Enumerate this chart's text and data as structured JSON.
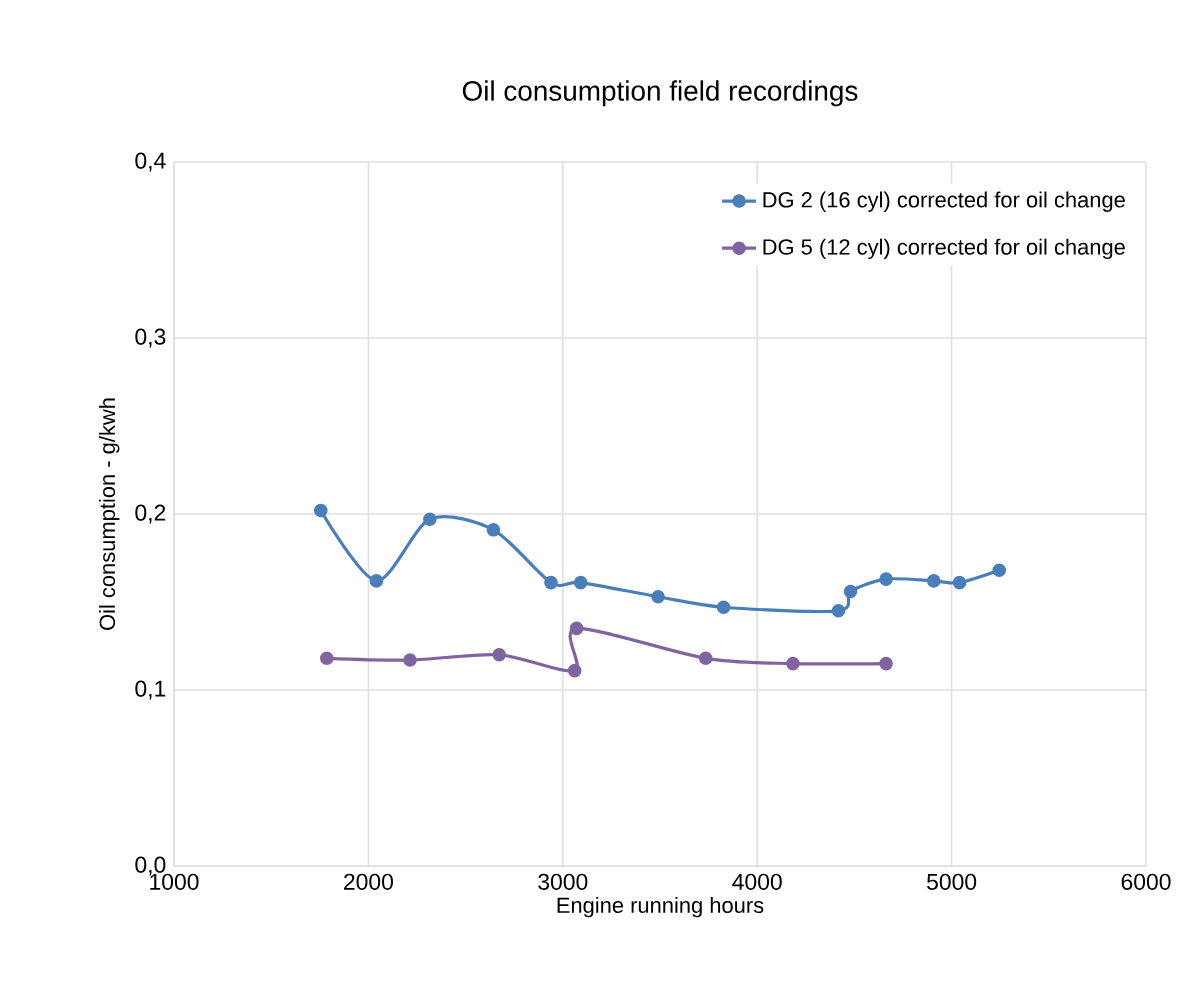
{
  "chart_data": {
    "type": "line",
    "title": "Oil consumption field recordings",
    "xlabel": "Engine running hours",
    "ylabel": "Oil consumption - g/kwh",
    "xlim": [
      1000,
      6000
    ],
    "xticks": [
      1000,
      2000,
      3000,
      4000,
      5000,
      6000
    ],
    "ylim": [
      0,
      0.4
    ],
    "yticks": [
      {
        "value": 0,
        "label": "0,0"
      },
      {
        "value": 0.1,
        "label": "0,1"
      },
      {
        "value": 0.2,
        "label": "0,2"
      },
      {
        "value": 0.3,
        "label": "0,3"
      },
      {
        "value": 0.4,
        "label": "0,4"
      }
    ],
    "grid": true,
    "legend": "top right",
    "marker": "circle",
    "line_style": "solid",
    "series": [
      {
        "name": "DG 2 (16 cyl) corrected for oil change",
        "color": "#4a7ebb",
        "x": [
          1755,
          2041,
          2316,
          2643,
          2939,
          3092,
          3490,
          3827,
          4418,
          4480,
          4663,
          4908,
          5041,
          5245
        ],
        "values": [
          0.202,
          0.162,
          0.197,
          0.191,
          0.161,
          0.161,
          0.153,
          0.147,
          0.145,
          0.156,
          0.163,
          0.162,
          0.161,
          0.168
        ]
      },
      {
        "name": "DG 5 (12 cyl) corrected for oil change",
        "color": "#8064a2",
        "x": [
          1786,
          2214,
          2673,
          3061,
          3071,
          3735,
          4184,
          4663
        ],
        "values": [
          0.118,
          0.117,
          0.12,
          0.111,
          0.135,
          0.118,
          0.115,
          0.115
        ]
      }
    ]
  }
}
